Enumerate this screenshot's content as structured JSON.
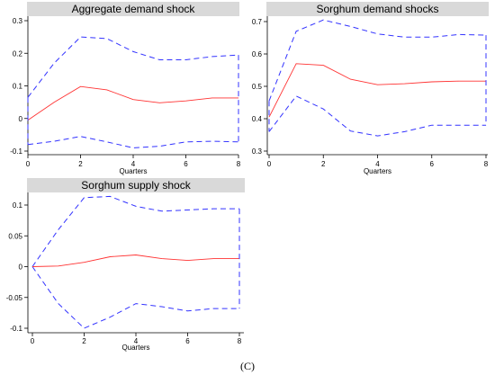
{
  "chart_data": [
    {
      "type": "line",
      "title": "Aggregate demand shock",
      "xlabel": "Quarters",
      "ylabel": "",
      "xlim": [
        0,
        8
      ],
      "ylim": [
        -0.1,
        0.3
      ],
      "xticks": [
        0,
        2,
        4,
        6,
        8
      ],
      "yticks": [
        -0.1,
        0,
        0.1,
        0.2,
        0.3
      ],
      "ytick_labels": [
        "-0.1",
        "0",
        "0.1",
        "0.2",
        "0.3"
      ],
      "x": [
        0,
        1,
        2,
        3,
        4,
        5,
        6,
        7,
        8
      ],
      "series": [
        {
          "role": "response",
          "color": "#ff3333",
          "style": "solid",
          "values": [
            -0.005,
            0.05,
            0.098,
            0.088,
            0.058,
            0.048,
            0.054,
            0.063,
            0.063
          ]
        },
        {
          "role": "upper",
          "color": "#3333ff",
          "style": "dashed",
          "values": [
            0.065,
            0.17,
            0.25,
            0.245,
            0.205,
            0.18,
            0.18,
            0.19,
            0.195
          ]
        },
        {
          "role": "lower",
          "color": "#3333ff",
          "style": "dashed",
          "values": [
            -0.08,
            -0.07,
            -0.055,
            -0.072,
            -0.09,
            -0.085,
            -0.072,
            -0.07,
            -0.072
          ]
        }
      ]
    },
    {
      "type": "line",
      "title": "Sorghum demand shocks",
      "xlabel": "Quarters",
      "ylabel": "",
      "xlim": [
        0,
        8
      ],
      "ylim": [
        0.3,
        0.7
      ],
      "xticks": [
        0,
        2,
        4,
        6,
        8
      ],
      "yticks": [
        0.3,
        0.4,
        0.5,
        0.6,
        0.7
      ],
      "ytick_labels": [
        "0.3",
        "0.4",
        "0.5",
        "0.6",
        "0.7"
      ],
      "x": [
        0,
        1,
        2,
        3,
        4,
        5,
        6,
        7,
        8
      ],
      "series": [
        {
          "role": "response",
          "color": "#ff3333",
          "style": "solid",
          "values": [
            0.405,
            0.57,
            0.565,
            0.522,
            0.505,
            0.508,
            0.514,
            0.516,
            0.516
          ]
        },
        {
          "role": "upper",
          "color": "#3333ff",
          "style": "dashed",
          "values": [
            0.455,
            0.67,
            0.705,
            0.685,
            0.662,
            0.652,
            0.652,
            0.66,
            0.658
          ]
        },
        {
          "role": "lower",
          "color": "#3333ff",
          "style": "dashed",
          "values": [
            0.36,
            0.47,
            0.43,
            0.362,
            0.347,
            0.36,
            0.38,
            0.38,
            0.38
          ]
        }
      ]
    },
    {
      "type": "line",
      "title": "Sorghum supply shock",
      "xlabel": "Quarters",
      "ylabel": "",
      "xlim": [
        0,
        8
      ],
      "ylim": [
        -0.1,
        0.1
      ],
      "xticks": [
        0,
        2,
        4,
        6,
        8
      ],
      "yticks": [
        -0.1,
        -0.05,
        0,
        0.05,
        0.1
      ],
      "ytick_labels": [
        "-0.1",
        "-0.05",
        "0",
        "0.05",
        "0.1"
      ],
      "x": [
        0,
        1,
        2,
        3,
        4,
        5,
        6,
        7,
        8
      ],
      "series": [
        {
          "role": "response",
          "color": "#ff3333",
          "style": "solid",
          "values": [
            0,
            0.001,
            0.007,
            0.016,
            0.019,
            0.013,
            0.01,
            0.013,
            0.013
          ]
        },
        {
          "role": "upper",
          "color": "#3333ff",
          "style": "dashed",
          "values": [
            0,
            0.06,
            0.112,
            0.114,
            0.098,
            0.09,
            0.092,
            0.094,
            0.094
          ]
        },
        {
          "role": "lower",
          "color": "#3333ff",
          "style": "dashed",
          "values": [
            0,
            -0.06,
            -0.1,
            -0.082,
            -0.06,
            -0.065,
            -0.072,
            -0.068,
            -0.068
          ]
        }
      ]
    }
  ],
  "caption": "(C)"
}
